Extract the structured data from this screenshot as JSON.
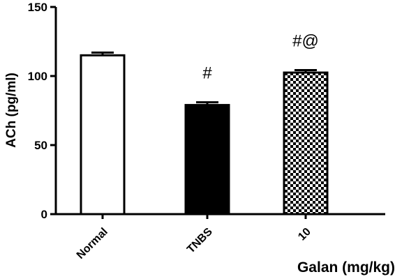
{
  "chart_data": {
    "type": "bar",
    "categories": [
      "Normal",
      "TNBS",
      "10"
    ],
    "values": [
      115,
      79,
      102.5
    ],
    "errors": [
      2,
      2,
      1.8
    ],
    "annotations": [
      "",
      "#",
      "#@"
    ],
    "fills": [
      "white",
      "black",
      "checker"
    ],
    "xlabel": "Galan (mg/kg)",
    "ylabel": "ACh (pg/ml)",
    "ylim": [
      0,
      150
    ],
    "yticks": [
      0,
      50,
      100,
      150
    ],
    "grid": false
  }
}
